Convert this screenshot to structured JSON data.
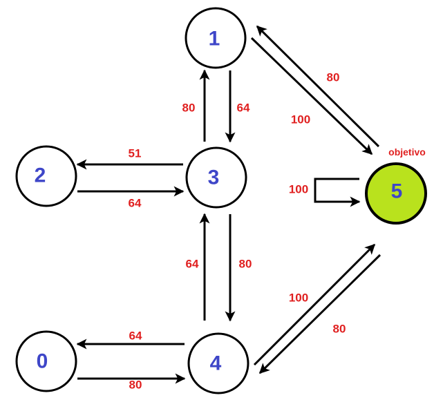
{
  "nodes": [
    {
      "id": "0",
      "label": "0",
      "goal": false
    },
    {
      "id": "1",
      "label": "1",
      "goal": false
    },
    {
      "id": "2",
      "label": "2",
      "goal": false
    },
    {
      "id": "3",
      "label": "3",
      "goal": false
    },
    {
      "id": "4",
      "label": "4",
      "goal": false
    },
    {
      "id": "5",
      "label": "5",
      "goal": true
    }
  ],
  "goal_label": "objetivo",
  "edges": [
    {
      "from": "3",
      "to": "1",
      "weight": "80"
    },
    {
      "from": "1",
      "to": "3",
      "weight": "64"
    },
    {
      "from": "3",
      "to": "2",
      "weight": "51"
    },
    {
      "from": "2",
      "to": "3",
      "weight": "64"
    },
    {
      "from": "4",
      "to": "3",
      "weight": "64"
    },
    {
      "from": "3",
      "to": "4",
      "weight": "80"
    },
    {
      "from": "4",
      "to": "0",
      "weight": "64"
    },
    {
      "from": "0",
      "to": "4",
      "weight": "80"
    },
    {
      "from": "5",
      "to": "1",
      "weight": "80"
    },
    {
      "from": "1",
      "to": "5",
      "weight": "100"
    },
    {
      "from": "4",
      "to": "5",
      "weight": "100"
    },
    {
      "from": "5",
      "to": "4",
      "weight": "80"
    },
    {
      "from": "5",
      "to": "5",
      "weight": "100"
    }
  ],
  "colors": {
    "node_label": "#3e46c8",
    "weight": "#e02020",
    "goal_fill": "#b9e21d"
  }
}
